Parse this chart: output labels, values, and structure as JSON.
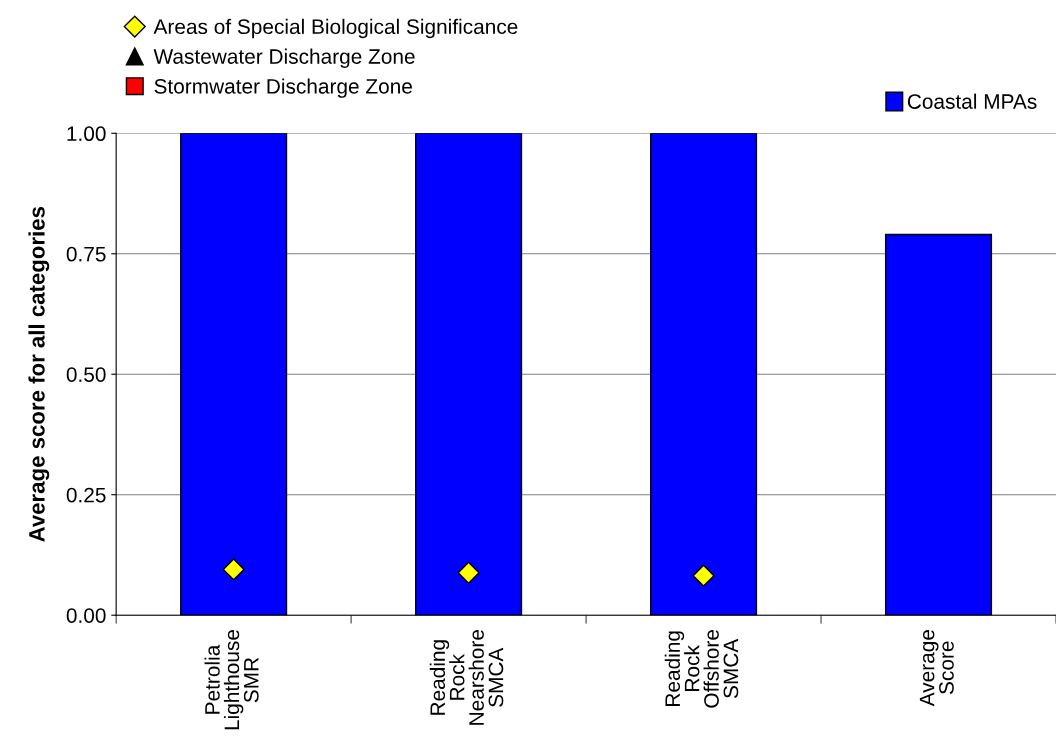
{
  "chart_data": {
    "type": "bar",
    "ylabel": "Average score for all categories",
    "categories": [
      "Petrolia\nLighthouse\nSMR",
      "Reading\nRock\nNearshore\nSMCA",
      "Reading\nRock\nOffshore\nSMCA",
      "Average\nScore"
    ],
    "series": [
      {
        "name": "Coastal MPAs",
        "color": "#0000ff",
        "values": [
          1.0,
          1.0,
          1.0,
          0.79
        ]
      },
      {
        "name": "Areas of Special Biological Significance",
        "type": "scatter",
        "marker": "diamond",
        "color": "#ffff00",
        "values": [
          0.095,
          0.088,
          0.082,
          null
        ]
      },
      {
        "name": "Wastewater Discharge Zone",
        "type": "scatter",
        "marker": "triangle",
        "color": "#000000",
        "values": [
          null,
          null,
          null,
          null
        ]
      },
      {
        "name": "Stormwater Discharge Zone",
        "type": "scatter",
        "marker": "square",
        "color": "#ff0000",
        "values": [
          null,
          null,
          null,
          null
        ]
      }
    ],
    "ylim": [
      0,
      1
    ],
    "yticks": [
      {
        "value": 0,
        "label": "0.00"
      },
      {
        "value": 0.25,
        "label": "0.25"
      },
      {
        "value": 0.5,
        "label": "0.50"
      },
      {
        "value": 0.75,
        "label": "0.75"
      },
      {
        "value": 1,
        "label": "1.00"
      }
    ],
    "grid": "y",
    "legend": "top"
  }
}
